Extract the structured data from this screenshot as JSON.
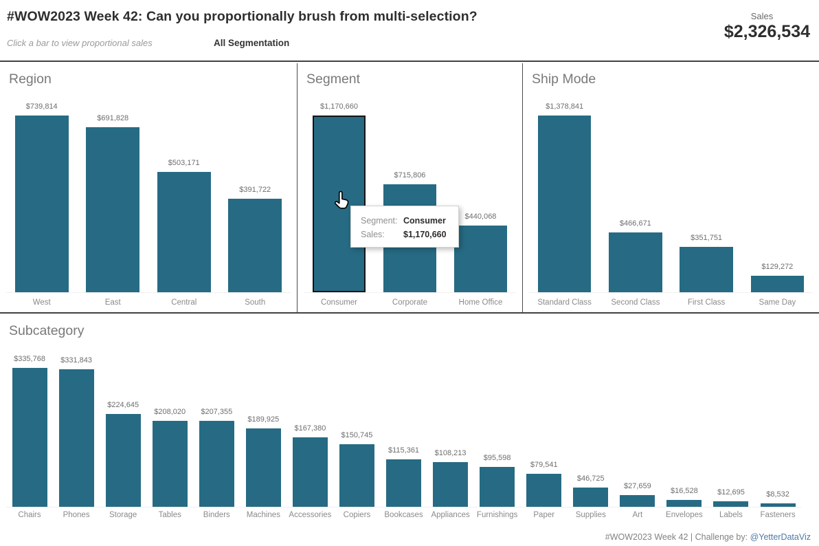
{
  "header": {
    "title": "#WOW2023 Week 42: Can you proportionally brush from multi-selection?",
    "subtitle": "Click a bar to view proportional sales",
    "segmentation_label": "All Segmentation",
    "sales_label": "Sales",
    "sales_total": "$2,326,534"
  },
  "colors": {
    "bar": "#266b83",
    "selected_bar_border": "#141414",
    "divider": "#414141",
    "link": "#4e79a7",
    "value_label": "#6e6e6e",
    "category_label": "#8a8a8a",
    "panel_title": "#797979"
  },
  "icons": {
    "cursor": "hand-pointer-icon"
  },
  "tooltip": {
    "rows": [
      {
        "label": "Segment:",
        "value": "Consumer"
      },
      {
        "label": "Sales:",
        "value": "$1,170,660"
      }
    ]
  },
  "footer": {
    "text": "#WOW2023 Week 42 | Challenge by:",
    "link": "@YetterDataViz"
  },
  "chart_data": [
    {
      "type": "bar",
      "title": "Region",
      "categories": [
        "West",
        "East",
        "Central",
        "South"
      ],
      "values": [
        739814,
        691828,
        503171,
        391722
      ],
      "labels": [
        "$739,814",
        "$691,828",
        "$503,171",
        "$391,722"
      ],
      "ylim": [
        0,
        739814
      ],
      "grid": false,
      "legend": false
    },
    {
      "type": "bar",
      "title": "Segment",
      "categories": [
        "Consumer",
        "Corporate",
        "Home Office"
      ],
      "values": [
        1170660,
        715806,
        440068
      ],
      "labels": [
        "$1,170,660",
        "$715,806",
        "$440,068"
      ],
      "selected_index": 0,
      "selected_category": "Consumer",
      "ylim": [
        0,
        1170660
      ],
      "grid": false,
      "legend": false
    },
    {
      "type": "bar",
      "title": "Ship Mode",
      "categories": [
        "Standard Class",
        "Second Class",
        "First Class",
        "Same Day"
      ],
      "values": [
        1378841,
        466671,
        351751,
        129272
      ],
      "labels": [
        "$1,378,841",
        "$466,671",
        "$351,751",
        "$129,272"
      ],
      "ylim": [
        0,
        1378841
      ],
      "grid": false,
      "legend": false
    },
    {
      "type": "bar",
      "title": "Subcategory",
      "categories": [
        "Chairs",
        "Phones",
        "Storage",
        "Tables",
        "Binders",
        "Machines",
        "Accessories",
        "Copiers",
        "Bookcases",
        "Appliances",
        "Furnishings",
        "Paper",
        "Supplies",
        "Art",
        "Envelopes",
        "Labels",
        "Fasteners"
      ],
      "values": [
        335768,
        331843,
        224645,
        208020,
        207355,
        189925,
        167380,
        150745,
        115361,
        108213,
        95598,
        79541,
        46725,
        27659,
        16528,
        12695,
        8532
      ],
      "labels": [
        "$335,768",
        "$331,843",
        "$224,645",
        "$208,020",
        "$207,355",
        "$189,925",
        "$167,380",
        "$150,745",
        "$115,361",
        "$108,213",
        "$95,598",
        "$79,541",
        "$46,725",
        "$27,659",
        "$16,528",
        "$12,695",
        "$8,532"
      ],
      "ylim": [
        0,
        335768
      ],
      "grid": false,
      "legend": false
    }
  ]
}
